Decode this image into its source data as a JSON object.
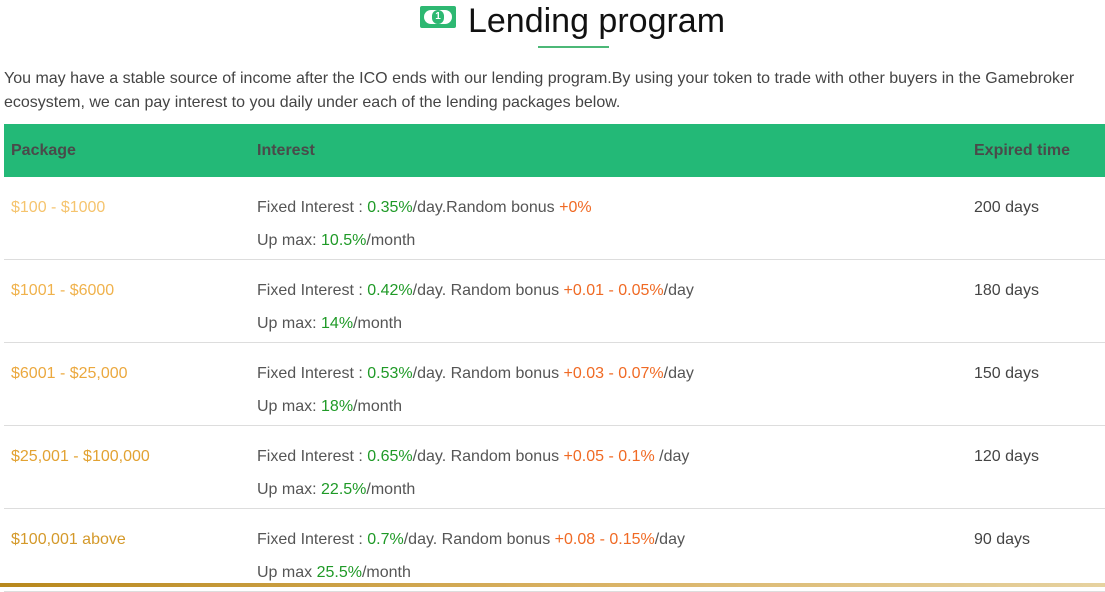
{
  "header": {
    "title": "Lending program",
    "icon": "money-bill-icon"
  },
  "intro": "You may have a stable source of income after the ICO ends with our lending program.By using your token to trade with other buyers in the Gamebroker ecosystem, we can pay interest to you daily under each of the lending packages below.",
  "table": {
    "columns": [
      "Package",
      "Interest",
      "Expired time"
    ],
    "rows": [
      {
        "package": "$100 - $1000",
        "color": "#f5c46e",
        "fixed_label": "Fixed Interest : ",
        "fixed": "0.35%",
        "fixed_suffix": "/day.Random bonus ",
        "bonus": "+0%",
        "bonus_suffix": "",
        "max_label": "Up max: ",
        "max": "10.5%",
        "max_suffix": "/month",
        "expired": "200 days"
      },
      {
        "package": "$1001 - $6000",
        "color": "#f0b24c",
        "fixed_label": "Fixed Interest : ",
        "fixed": "0.42%",
        "fixed_suffix": "/day. Random bonus ",
        "bonus": "+0.01 - 0.05%",
        "bonus_suffix": "/day",
        "max_label": "Up max: ",
        "max": "14%",
        "max_suffix": "/month",
        "expired": "180 days"
      },
      {
        "package": "$6001 - $25,000",
        "color": "#eba83e",
        "fixed_label": "Fixed Interest : ",
        "fixed": "0.53%",
        "fixed_suffix": "/day. Random bonus ",
        "bonus": "+0.03 - 0.07%",
        "bonus_suffix": "/day",
        "max_label": "Up max: ",
        "max": "18%",
        "max_suffix": "/month",
        "expired": "150 days"
      },
      {
        "package": "$25,001 - $100,000",
        "color": "#e2a232",
        "fixed_label": "Fixed Interest : ",
        "fixed": "0.65%",
        "fixed_suffix": "/day. Random bonus ",
        "bonus": "+0.05 - 0.1%",
        "bonus_suffix": " /day",
        "max_label": "Up max: ",
        "max": "22.5%",
        "max_suffix": "/month",
        "expired": "120 days"
      },
      {
        "package": "$100,001 above",
        "color": "#d4992a",
        "fixed_label": "Fixed Interest : ",
        "fixed": "0.7%",
        "fixed_suffix": "/day. Random bonus ",
        "bonus": "+0.08 - 0.15%",
        "bonus_suffix": "/day",
        "max_label": "Up max ",
        "max": "25.5%",
        "max_suffix": "/month",
        "expired": "90 days"
      }
    ]
  }
}
